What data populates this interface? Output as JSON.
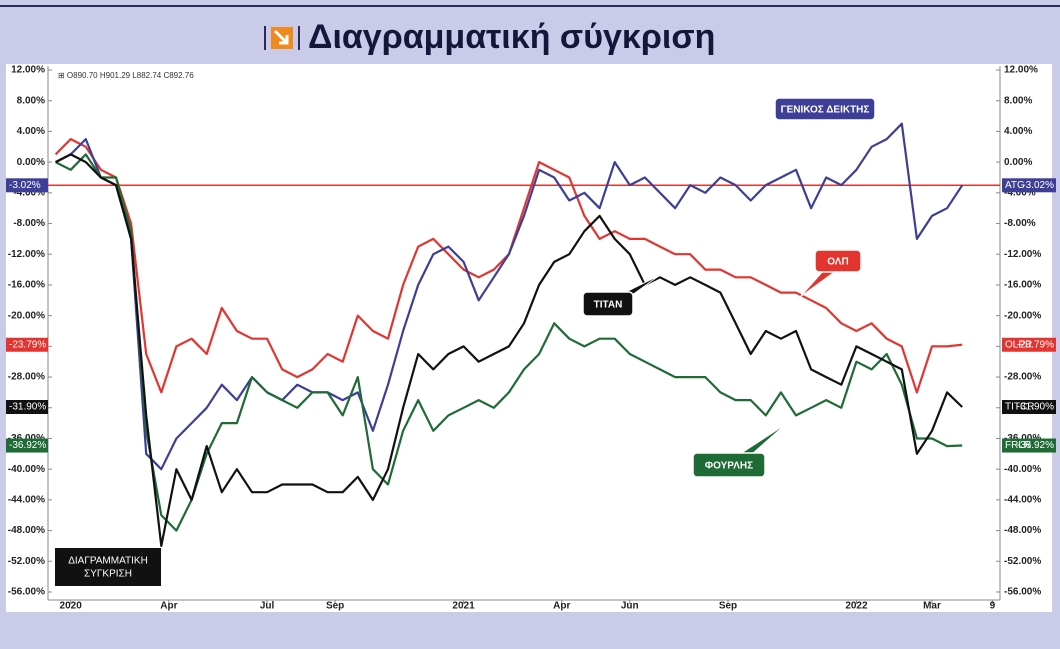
{
  "chart_data": {
    "type": "line",
    "title": "Διαγραμματική σύγκριση",
    "ohlc_text": "⊞ O890.70 H901.29 L882.74 C892.76",
    "x": [
      -2,
      0,
      2,
      4,
      6,
      8,
      10,
      12,
      14,
      16,
      18,
      20,
      22,
      24,
      26,
      28,
      30,
      32,
      34,
      36,
      38,
      40,
      42,
      44,
      46,
      48,
      50,
      52,
      54,
      56,
      58,
      60,
      62,
      64,
      66,
      68,
      70,
      72,
      74,
      76,
      78,
      80,
      82,
      84,
      86,
      88,
      90,
      92,
      94,
      96,
      98,
      100,
      102,
      104,
      106,
      108,
      110,
      112,
      114,
      116,
      118
    ],
    "xlim": [
      -3,
      123
    ],
    "xticks": [
      {
        "value": 0,
        "label": "2020"
      },
      {
        "value": 13,
        "label": "Apr"
      },
      {
        "value": 26,
        "label": "Jul"
      },
      {
        "value": 35,
        "label": "Sep"
      },
      {
        "value": 52,
        "label": "2021"
      },
      {
        "value": 65,
        "label": "Apr"
      },
      {
        "value": 74,
        "label": "Jun"
      },
      {
        "value": 87,
        "label": "Sep"
      },
      {
        "value": 104,
        "label": "2022"
      },
      {
        "value": 114,
        "label": "Mar"
      },
      {
        "value": 122,
        "label": "9"
      }
    ],
    "ylim": [
      -56,
      12
    ],
    "yticks": [
      {
        "value": 12,
        "label": "12.00%"
      },
      {
        "value": 8,
        "label": "8.00%"
      },
      {
        "value": 4,
        "label": "4.00%"
      },
      {
        "value": 0,
        "label": "0.00%"
      },
      {
        "value": -4,
        "label": "-4.00%"
      },
      {
        "value": -8,
        "label": "-8.00%"
      },
      {
        "value": -12,
        "label": "-12.00%"
      },
      {
        "value": -16,
        "label": "-16.00%"
      },
      {
        "value": -20,
        "label": "-20.00%"
      },
      {
        "value": -24,
        "label": "-24.00%"
      },
      {
        "value": -28,
        "label": "-28.00%"
      },
      {
        "value": -32,
        "label": "-32.00%"
      },
      {
        "value": -36,
        "label": "-36.00%"
      },
      {
        "value": -40,
        "label": "-40.00%"
      },
      {
        "value": -44,
        "label": "-44.00%"
      },
      {
        "value": -48,
        "label": "-48.00%"
      },
      {
        "value": -52,
        "label": "-52.00%"
      },
      {
        "value": -56,
        "label": "-56.00%"
      }
    ],
    "grid": false,
    "reference_line": -3.02,
    "reference_color": "#e3342f",
    "corner_note": [
      "ΔΙΑΓΡΑΜΜΑΤΙΚΗ",
      "ΣΥΓΚΡΙΣΗ"
    ],
    "series": [
      {
        "name": "ATG",
        "annotation": "ΓΕΝΙΚΟΣ ΔΕΙΚΤΗΣ",
        "last_label": "-3.02%",
        "color": "#3d3f96",
        "values": [
          0,
          1,
          3,
          -2,
          -3,
          -10,
          -38,
          -40,
          -36,
          -34,
          -32,
          -29,
          -31,
          -28,
          -30,
          -31,
          -29,
          -30,
          -30,
          -31,
          -30,
          -35,
          -29,
          -22,
          -16,
          -12,
          -11,
          -13,
          -18,
          -15,
          -12,
          -7,
          -1,
          -2,
          -5,
          -4,
          -6,
          0,
          -3,
          -2,
          -4,
          -6,
          -3,
          -4,
          -2,
          -3,
          -5,
          -3,
          -2,
          -1,
          -6,
          -2,
          -3,
          -1,
          2,
          3,
          5,
          -10,
          -7,
          -6,
          -3.02
        ]
      },
      {
        "name": "OLPR",
        "annotation": "ΟΛΠ",
        "last_label": "-23.79%",
        "color": "#e3342f",
        "values": [
          1,
          3,
          2,
          -1,
          -2,
          -8,
          -25,
          -30,
          -24,
          -23,
          -25,
          -19,
          -22,
          -23,
          -23,
          -27,
          -28,
          -27,
          -25,
          -26,
          -20,
          -22,
          -23,
          -16,
          -11,
          -10,
          -12,
          -14,
          -15,
          -14,
          -12,
          -6,
          0,
          -1,
          -2,
          -7,
          -10,
          -9,
          -10,
          -10,
          -11,
          -12,
          -12,
          -14,
          -14,
          -15,
          -15,
          -16,
          -17,
          -17,
          -18,
          -19,
          -21,
          -22,
          -21,
          -23,
          -24,
          -30,
          -24,
          -24,
          -23.79
        ]
      },
      {
        "name": "TITCR",
        "annotation": "ΤΙΤΑΝ",
        "last_label": "-31.90%",
        "color": "#111111",
        "values": [
          0,
          1,
          0,
          -2,
          -3,
          -10,
          -33,
          -50,
          -40,
          -44,
          -37,
          -43,
          -40,
          -43,
          -43,
          -42,
          -42,
          -42,
          -43,
          -43,
          -41,
          -44,
          -40,
          -32,
          -25,
          -27,
          -25,
          -24,
          -26,
          -25,
          -24,
          -21,
          -16,
          -13,
          -12,
          -9,
          -7,
          -10,
          -12,
          -16,
          -15,
          -16,
          -15,
          -16,
          -17,
          -21,
          -25,
          -22,
          -23,
          -22,
          -27,
          -28,
          -29,
          -24,
          -25,
          -26,
          -27,
          -38,
          -35,
          -30,
          -31.9
        ]
      },
      {
        "name": "FRLR",
        "annotation": "ΦΟΥΡΛΗΣ",
        "last_label": "-36.92%",
        "color": "#1e6b35",
        "values": [
          0,
          -1,
          1,
          -2,
          -2,
          -9,
          -35,
          -46,
          -48,
          -44,
          -38,
          -34,
          -34,
          -28,
          -30,
          -31,
          -32,
          -30,
          -30,
          -33,
          -28,
          -40,
          -42,
          -35,
          -31,
          -35,
          -33,
          -32,
          -31,
          -32,
          -30,
          -27,
          -25,
          -21,
          -23,
          -24,
          -23,
          -23,
          -25,
          -26,
          -27,
          -28,
          -28,
          -28,
          -30,
          -31,
          -31,
          -33,
          -30,
          -33,
          -32,
          -31,
          -32,
          -26,
          -27,
          -25,
          -29,
          -36,
          -36,
          -37,
          -36.92
        ]
      }
    ]
  }
}
